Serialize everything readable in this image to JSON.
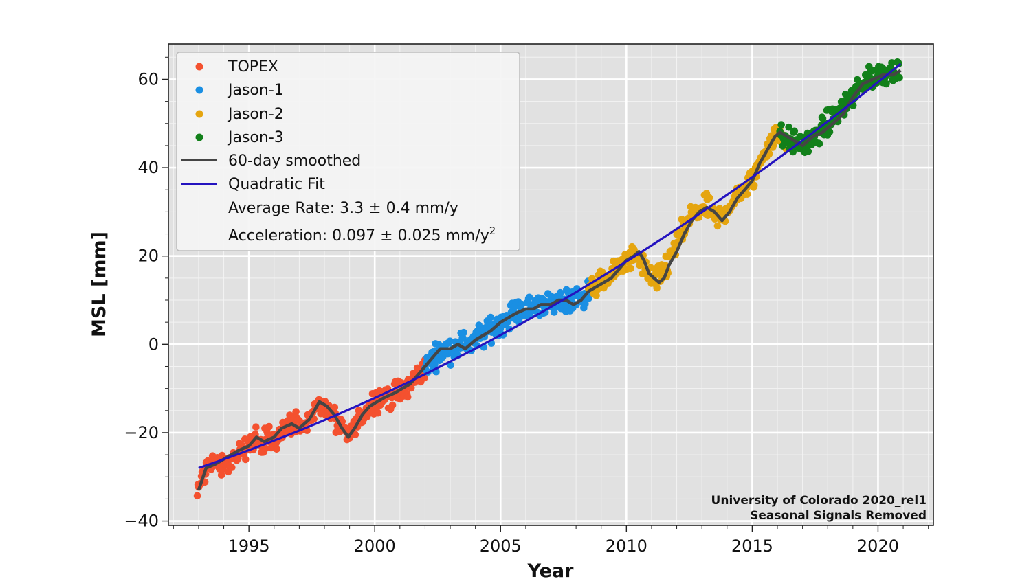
{
  "chart_data": {
    "type": "scatter",
    "title": "",
    "xlabel": "Year",
    "ylabel": "MSL [mm]",
    "xlim": [
      1991.8,
      2022.2
    ],
    "ylim": [
      -41,
      68
    ],
    "x_ticks": [
      1995,
      2000,
      2005,
      2010,
      2015,
      2020
    ],
    "x_tick_labels": [
      "1995",
      "2000",
      "2005",
      "2010",
      "2015",
      "2020"
    ],
    "y_ticks": [
      -40,
      -20,
      0,
      20,
      40,
      60
    ],
    "y_tick_labels": [
      "−40",
      "−20",
      "0",
      "20",
      "40",
      "60"
    ],
    "grid": true,
    "legend_position": "top-left",
    "series": [
      {
        "name": "TOPEX",
        "kind": "points",
        "color": "#f4512f",
        "anchors": [
          [
            1992.95,
            -33
          ],
          [
            1993.3,
            -28
          ],
          [
            1993.7,
            -27
          ],
          [
            1994.2,
            -26
          ],
          [
            1994.7,
            -24
          ],
          [
            1995.2,
            -22
          ],
          [
            1995.7,
            -22
          ],
          [
            1996.2,
            -21
          ],
          [
            1996.7,
            -18
          ],
          [
            1997.2,
            -19
          ],
          [
            1997.8,
            -13
          ],
          [
            1998.3,
            -16
          ],
          [
            1998.9,
            -21
          ],
          [
            1999.4,
            -17
          ],
          [
            1999.9,
            -13
          ],
          [
            2000.4,
            -12
          ],
          [
            2000.9,
            -11
          ],
          [
            2001.3,
            -10
          ],
          [
            2001.7,
            -7
          ],
          [
            2002.05,
            -5
          ]
        ]
      },
      {
        "name": "Jason-1",
        "kind": "points",
        "color": "#1a8fe3",
        "anchors": [
          [
            2002.0,
            -5
          ],
          [
            2002.5,
            -2
          ],
          [
            2003.0,
            -1
          ],
          [
            2003.5,
            0
          ],
          [
            2004.0,
            1
          ],
          [
            2004.5,
            3
          ],
          [
            2005.0,
            5
          ],
          [
            2005.5,
            7
          ],
          [
            2006.0,
            8
          ],
          [
            2006.5,
            9
          ],
          [
            2007.0,
            9
          ],
          [
            2007.5,
            10
          ],
          [
            2008.0,
            10
          ],
          [
            2008.5,
            12
          ]
        ]
      },
      {
        "name": "Jason-2",
        "kind": "points",
        "color": "#e5a50f",
        "anchors": [
          [
            2008.5,
            12
          ],
          [
            2009.0,
            14
          ],
          [
            2009.5,
            16
          ],
          [
            2010.0,
            19
          ],
          [
            2010.5,
            20
          ],
          [
            2010.8,
            16
          ],
          [
            2011.2,
            14
          ],
          [
            2011.6,
            18
          ],
          [
            2012.2,
            25
          ],
          [
            2012.7,
            30
          ],
          [
            2013.2,
            31
          ],
          [
            2013.6,
            28
          ],
          [
            2014.0,
            31
          ],
          [
            2014.5,
            34
          ],
          [
            2015.0,
            37
          ],
          [
            2015.5,
            44
          ],
          [
            2016.0,
            48
          ],
          [
            2016.5,
            46
          ]
        ]
      },
      {
        "name": "Jason-3",
        "kind": "points",
        "color": "#12801a",
        "anchors": [
          [
            2016.1,
            47
          ],
          [
            2016.6,
            46
          ],
          [
            2017.0,
            45
          ],
          [
            2017.5,
            47
          ],
          [
            2018.0,
            50
          ],
          [
            2018.5,
            53
          ],
          [
            2019.0,
            56
          ],
          [
            2019.5,
            60
          ],
          [
            2020.0,
            61
          ],
          [
            2020.5,
            62
          ],
          [
            2020.85,
            62
          ]
        ]
      },
      {
        "name": "60-day smoothed",
        "kind": "line",
        "color": "#454545",
        "points": [
          [
            1993.0,
            -33
          ],
          [
            1993.3,
            -28
          ],
          [
            1993.7,
            -27
          ],
          [
            1994.0,
            -26
          ],
          [
            1994.3,
            -25
          ],
          [
            1994.6,
            -24
          ],
          [
            1995.0,
            -23
          ],
          [
            1995.3,
            -21
          ],
          [
            1995.6,
            -22
          ],
          [
            1996.0,
            -21
          ],
          [
            1996.3,
            -19
          ],
          [
            1996.7,
            -18
          ],
          [
            1997.0,
            -19
          ],
          [
            1997.4,
            -17
          ],
          [
            1997.8,
            -13
          ],
          [
            1998.1,
            -14
          ],
          [
            1998.4,
            -16
          ],
          [
            1998.7,
            -19
          ],
          [
            1998.95,
            -21
          ],
          [
            1999.2,
            -19
          ],
          [
            1999.5,
            -16
          ],
          [
            1999.8,
            -14
          ],
          [
            2000.1,
            -13
          ],
          [
            2000.4,
            -12
          ],
          [
            2000.8,
            -11
          ],
          [
            2001.1,
            -10
          ],
          [
            2001.4,
            -9
          ],
          [
            2001.7,
            -7
          ],
          [
            2002.0,
            -5
          ],
          [
            2002.3,
            -3
          ],
          [
            2002.6,
            -1
          ],
          [
            2003.0,
            -1
          ],
          [
            2003.3,
            0
          ],
          [
            2003.6,
            -1
          ],
          [
            2004.0,
            1
          ],
          [
            2004.3,
            2
          ],
          [
            2004.6,
            3
          ],
          [
            2005.0,
            5
          ],
          [
            2005.3,
            6
          ],
          [
            2005.6,
            7
          ],
          [
            2006.0,
            8
          ],
          [
            2006.3,
            8
          ],
          [
            2006.6,
            9
          ],
          [
            2007.0,
            9
          ],
          [
            2007.3,
            10
          ],
          [
            2007.6,
            10
          ],
          [
            2007.9,
            9
          ],
          [
            2008.2,
            10
          ],
          [
            2008.5,
            12
          ],
          [
            2008.8,
            13
          ],
          [
            2009.1,
            14
          ],
          [
            2009.4,
            15
          ],
          [
            2009.7,
            17
          ],
          [
            2010.0,
            19
          ],
          [
            2010.3,
            20
          ],
          [
            2010.5,
            21
          ],
          [
            2010.7,
            19
          ],
          [
            2010.9,
            16
          ],
          [
            2011.1,
            15
          ],
          [
            2011.3,
            14
          ],
          [
            2011.5,
            15
          ],
          [
            2011.7,
            18
          ],
          [
            2012.0,
            21
          ],
          [
            2012.3,
            25
          ],
          [
            2012.6,
            28
          ],
          [
            2012.9,
            30
          ],
          [
            2013.2,
            31
          ],
          [
            2013.5,
            30
          ],
          [
            2013.8,
            28
          ],
          [
            2014.1,
            30
          ],
          [
            2014.4,
            33
          ],
          [
            2014.7,
            35
          ],
          [
            2015.0,
            37
          ],
          [
            2015.3,
            41
          ],
          [
            2015.6,
            44
          ],
          [
            2015.9,
            47
          ],
          [
            2016.1,
            48
          ],
          [
            2016.4,
            47
          ],
          [
            2016.7,
            46
          ],
          [
            2017.0,
            45
          ],
          [
            2017.4,
            47
          ],
          [
            2017.8,
            48
          ],
          [
            2018.2,
            50
          ],
          [
            2018.6,
            52
          ],
          [
            2019.0,
            56
          ],
          [
            2019.4,
            59
          ],
          [
            2019.8,
            60
          ],
          [
            2020.2,
            61
          ],
          [
            2020.6,
            61
          ],
          [
            2020.9,
            62
          ]
        ]
      },
      {
        "name": "Quadratic Fit",
        "kind": "fit",
        "color": "#2413bf",
        "x_range": [
          1993.0,
          2020.9
        ],
        "y_at_start": -28,
        "y_at_end": 63.5
      }
    ],
    "legend": {
      "entries": [
        "TOPEX",
        "Jason-1",
        "Jason-2",
        "Jason-3",
        "60-day smoothed",
        "Quadratic Fit"
      ],
      "rate_text": "Average Rate: 3.3 ± 0.4 mm/y",
      "accel_text": "Acceleration: 0.097 ± 0.025 mm/y",
      "accel_superscript": "2"
    },
    "annotation": {
      "line1": "University of Colorado 2020_rel1",
      "line2": "Seasonal Signals Removed"
    }
  }
}
